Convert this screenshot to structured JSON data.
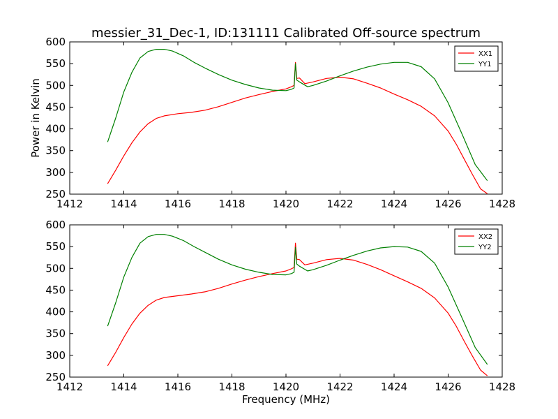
{
  "title": "messier_31_Dec-1, ID:131111 Calibrated Off-source spectrum",
  "chart_data": [
    {
      "type": "line",
      "ylabel": "Power in Kelvin",
      "xlabel": "",
      "xlim": [
        1412,
        1428
      ],
      "ylim": [
        250,
        600
      ],
      "xticks": [
        "1412",
        "1414",
        "1416",
        "1418",
        "1420",
        "1422",
        "1424",
        "1426",
        "1428"
      ],
      "yticks": [
        "250",
        "300",
        "350",
        "400",
        "450",
        "500",
        "550",
        "600"
      ],
      "legend_position": "top-right",
      "grid": false,
      "series": [
        {
          "name": "XX1",
          "color": "#ff0000",
          "x": [
            1413.4,
            1413.7,
            1414.0,
            1414.3,
            1414.6,
            1414.9,
            1415.2,
            1415.5,
            1416.0,
            1416.5,
            1417.0,
            1417.5,
            1418.0,
            1418.5,
            1419.0,
            1419.5,
            1420.0,
            1420.2,
            1420.3,
            1420.35,
            1420.4,
            1420.5,
            1420.7,
            1421.0,
            1421.5,
            1422.0,
            1422.5,
            1423.0,
            1423.5,
            1424.0,
            1424.5,
            1425.0,
            1425.5,
            1426.0,
            1426.3,
            1426.6,
            1426.9,
            1427.2,
            1427.45
          ],
          "y": [
            274,
            305,
            338,
            368,
            393,
            412,
            424,
            430,
            435,
            438,
            443,
            451,
            461,
            471,
            479,
            486,
            492,
            497,
            500,
            553,
            516,
            517,
            504,
            508,
            516,
            519,
            515,
            505,
            494,
            480,
            467,
            452,
            430,
            395,
            365,
            330,
            295,
            262,
            251
          ]
        },
        {
          "name": "YY1",
          "color": "#008000",
          "x": [
            1413.4,
            1413.7,
            1414.0,
            1414.3,
            1414.6,
            1414.9,
            1415.2,
            1415.5,
            1415.8,
            1416.2,
            1416.6,
            1417.0,
            1417.5,
            1418.0,
            1418.5,
            1419.0,
            1419.5,
            1420.0,
            1420.2,
            1420.3,
            1420.35,
            1420.4,
            1420.5,
            1420.8,
            1421.0,
            1421.5,
            1422.0,
            1422.5,
            1423.0,
            1423.5,
            1424.0,
            1424.5,
            1425.0,
            1425.5,
            1426.0,
            1426.5,
            1427.0,
            1427.45
          ],
          "y": [
            370,
            425,
            485,
            530,
            563,
            578,
            583,
            583,
            579,
            568,
            553,
            540,
            525,
            512,
            502,
            494,
            489,
            488,
            491,
            494,
            550,
            512,
            508,
            497,
            500,
            510,
            522,
            533,
            542,
            549,
            553,
            553,
            543,
            515,
            460,
            390,
            318,
            281
          ]
        }
      ]
    },
    {
      "type": "line",
      "ylabel": "",
      "xlabel": "Frequency (MHz)",
      "xlim": [
        1412,
        1428
      ],
      "ylim": [
        250,
        600
      ],
      "xticks": [
        "1412",
        "1414",
        "1416",
        "1418",
        "1420",
        "1422",
        "1424",
        "1426",
        "1428"
      ],
      "yticks": [
        "250",
        "300",
        "350",
        "400",
        "450",
        "500",
        "550",
        "600"
      ],
      "legend_position": "top-right",
      "grid": false,
      "series": [
        {
          "name": "XX2",
          "color": "#ff0000",
          "x": [
            1413.4,
            1413.7,
            1414.0,
            1414.3,
            1414.6,
            1414.9,
            1415.2,
            1415.5,
            1416.0,
            1416.5,
            1417.0,
            1417.5,
            1418.0,
            1418.5,
            1419.0,
            1419.5,
            1420.0,
            1420.2,
            1420.3,
            1420.35,
            1420.4,
            1420.5,
            1420.7,
            1421.0,
            1421.5,
            1422.0,
            1422.5,
            1423.0,
            1423.5,
            1424.0,
            1424.5,
            1425.0,
            1425.5,
            1426.0,
            1426.3,
            1426.6,
            1426.9,
            1427.2,
            1427.45
          ],
          "y": [
            276,
            307,
            341,
            372,
            397,
            415,
            427,
            433,
            437,
            441,
            446,
            454,
            464,
            473,
            481,
            488,
            494,
            499,
            502,
            558,
            521,
            520,
            508,
            512,
            520,
            523,
            519,
            509,
            497,
            483,
            469,
            454,
            432,
            397,
            367,
            332,
            298,
            266,
            253
          ]
        },
        {
          "name": "YY2",
          "color": "#008000",
          "x": [
            1413.4,
            1413.7,
            1414.0,
            1414.3,
            1414.6,
            1414.9,
            1415.2,
            1415.5,
            1415.8,
            1416.2,
            1416.6,
            1417.0,
            1417.5,
            1418.0,
            1418.5,
            1419.0,
            1419.5,
            1420.0,
            1420.2,
            1420.3,
            1420.35,
            1420.4,
            1420.5,
            1420.8,
            1421.0,
            1421.5,
            1422.0,
            1422.5,
            1423.0,
            1423.5,
            1424.0,
            1424.5,
            1425.0,
            1425.5,
            1426.0,
            1426.5,
            1427.0,
            1427.45
          ],
          "y": [
            367,
            421,
            480,
            525,
            558,
            573,
            578,
            578,
            574,
            564,
            550,
            537,
            521,
            508,
            498,
            491,
            486,
            485,
            488,
            491,
            548,
            510,
            505,
            494,
            497,
            507,
            519,
            530,
            540,
            547,
            550,
            549,
            539,
            512,
            457,
            388,
            318,
            279
          ]
        }
      ]
    }
  ]
}
